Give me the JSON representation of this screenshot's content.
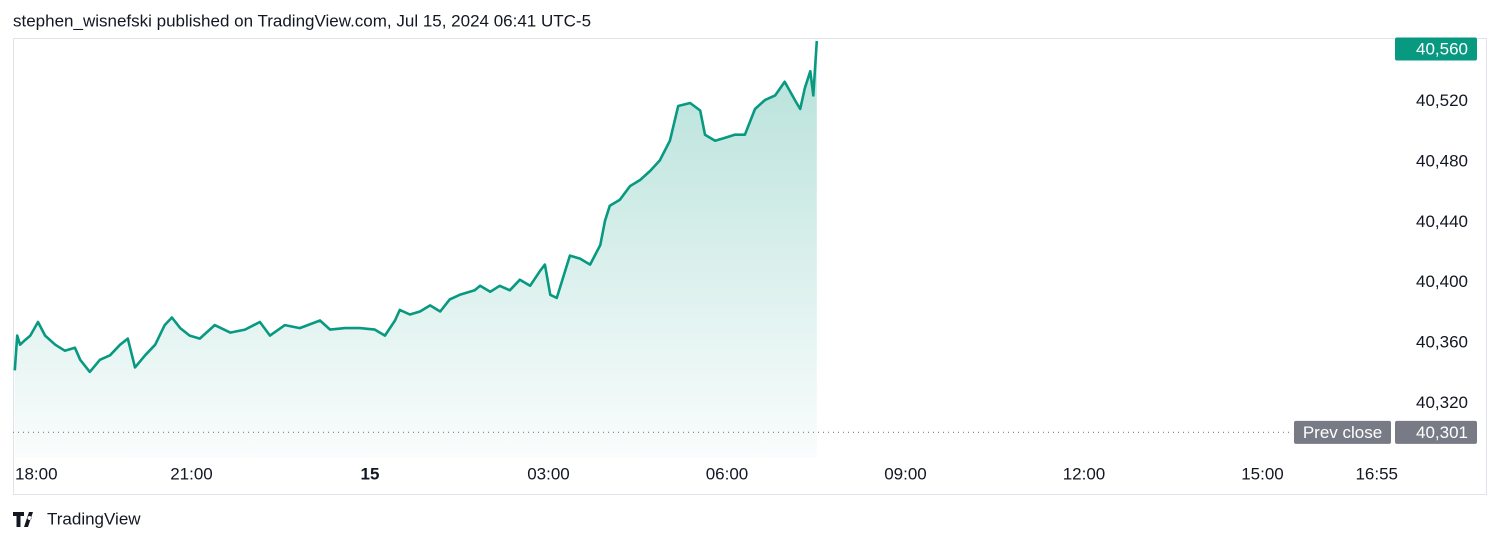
{
  "header": "stephen_wisnefski published on TradingView.com, Jul 15, 2024 06:41 UTC-5",
  "chart_data": {
    "type": "area",
    "color": "#089981",
    "x": [
      18.03,
      18.07,
      18.12,
      18.2,
      18.29,
      18.42,
      18.54,
      18.71,
      18.87,
      19.04,
      19.13,
      19.29,
      19.46,
      19.63,
      19.8,
      19.93,
      20.05,
      20.22,
      20.39,
      20.55,
      20.67,
      20.81,
      20.97,
      21.14,
      21.39,
      21.65,
      21.9,
      22.15,
      22.32,
      22.57,
      22.82,
      23.16,
      23.33,
      23.58,
      23.83,
      24.08,
      24.25,
      24.42,
      24.5,
      24.67,
      24.84,
      25.01,
      25.18,
      25.34,
      25.51,
      25.76,
      25.85,
      26.02,
      26.18,
      26.35,
      26.52,
      26.69,
      26.86,
      26.94,
      27.03,
      27.14,
      27.28,
      27.36,
      27.53,
      27.7,
      27.87,
      27.95,
      28.03,
      28.2,
      28.37,
      28.54,
      28.71,
      28.87,
      29.04,
      29.18,
      29.38,
      29.55,
      29.63,
      29.8,
      29.97,
      30.13,
      30.3,
      30.47,
      30.64,
      30.81,
      30.97,
      31.14,
      31.23,
      31.31,
      31.4,
      31.45,
      31.51
    ],
    "values": [
      40342,
      40365,
      40359,
      40362,
      40365,
      40374,
      40365,
      40359,
      40355,
      40357,
      40349,
      40341,
      40349,
      40352,
      40359,
      40363,
      40344,
      40352,
      40359,
      40372,
      40377,
      40370,
      40365,
      40363,
      40372,
      40367,
      40369,
      40374,
      40365,
      40372,
      40370,
      40375,
      40369,
      40370,
      40370,
      40369,
      40365,
      40375,
      40382,
      40379,
      40381,
      40385,
      40381,
      40389,
      40392,
      40395,
      40398,
      40394,
      40398,
      40395,
      40402,
      40398,
      40408,
      40412,
      40392,
      40390,
      40408,
      40418,
      40416,
      40412,
      40425,
      40441,
      40451,
      40455,
      40464,
      40468,
      40474,
      40481,
      40494,
      40517,
      40519,
      40514,
      40498,
      40494,
      40496,
      40498,
      40498,
      40515,
      40521,
      40524,
      40533,
      40521,
      40515,
      40529,
      40540,
      40524,
      40560
    ],
    "xlim": [
      18,
      41.2
    ],
    "xticks": [
      {
        "value": 18,
        "label": "18:00"
      },
      {
        "value": 21,
        "label": "21:00"
      },
      {
        "value": 24,
        "label": "15"
      },
      {
        "value": 27,
        "label": "03:00"
      },
      {
        "value": 30,
        "label": "06:00"
      },
      {
        "value": 33,
        "label": "09:00"
      },
      {
        "value": 36,
        "label": "12:00"
      },
      {
        "value": 39,
        "label": "15:00"
      },
      {
        "value": 40.92,
        "label": "16:55"
      }
    ],
    "ylim": [
      40284,
      40562
    ],
    "yticks": [
      {
        "value": 40320,
        "label": "40,320"
      },
      {
        "value": 40360,
        "label": "40,360"
      },
      {
        "value": 40400,
        "label": "40,400"
      },
      {
        "value": 40440,
        "label": "40,440"
      },
      {
        "value": 40480,
        "label": "40,480"
      },
      {
        "value": 40520,
        "label": "40,520"
      }
    ],
    "last_price": {
      "value": 40560,
      "label": "40,560"
    },
    "prev_close": {
      "name": "Prev close",
      "value": 40301,
      "label": "40,301"
    }
  },
  "footer": "TradingView"
}
